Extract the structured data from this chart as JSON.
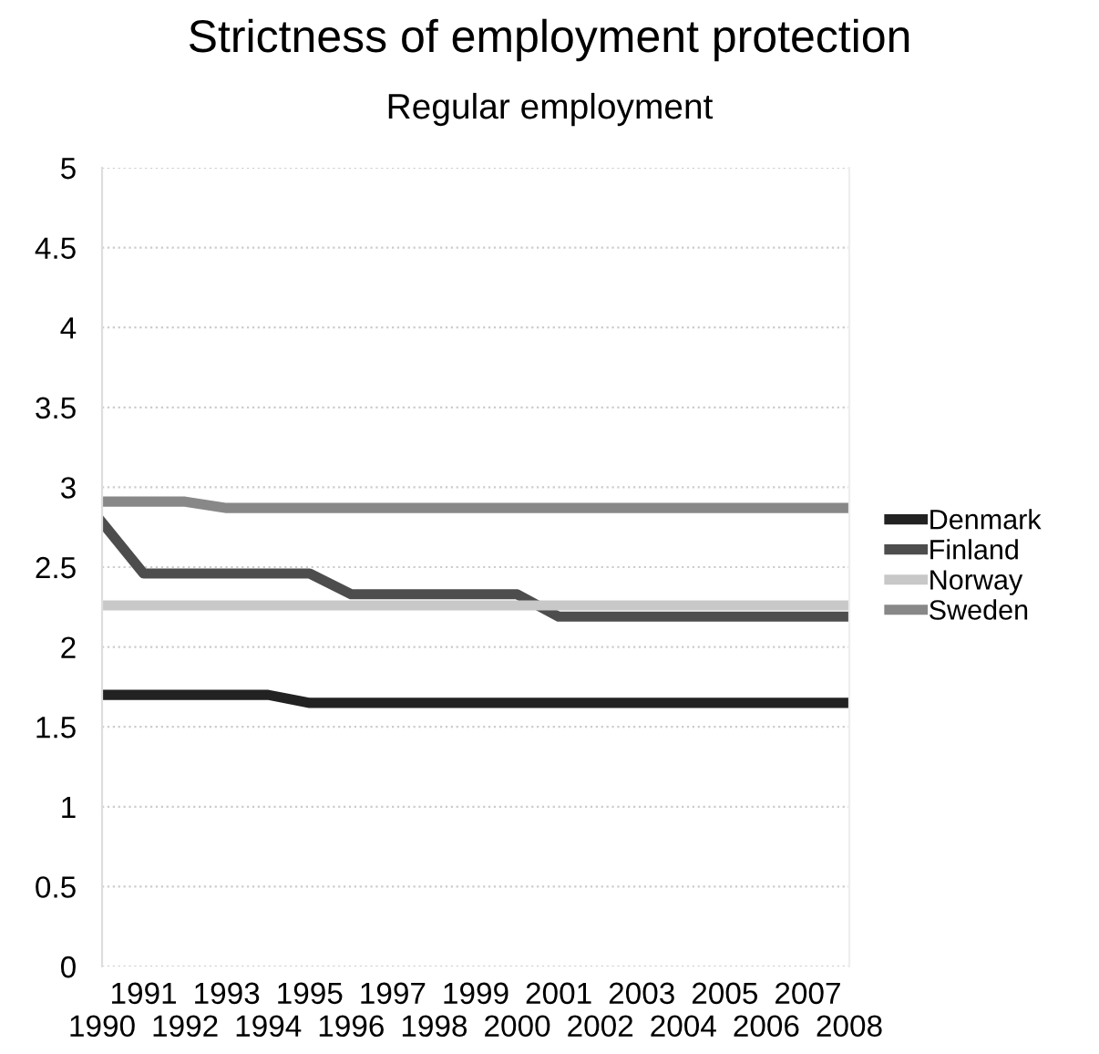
{
  "chart_data": {
    "type": "line",
    "title": "Strictness of employment protection",
    "subtitle": "Regular employment",
    "categories": [
      "1990",
      "1991",
      "1992",
      "1993",
      "1994",
      "1995",
      "1996",
      "1997",
      "1998",
      "1999",
      "2000",
      "2001",
      "2002",
      "2003",
      "2004",
      "2005",
      "2006",
      "2007",
      "2008"
    ],
    "series": [
      {
        "name": "Denmark",
        "color": "#222222",
        "values": [
          1.7,
          1.7,
          1.7,
          1.7,
          1.7,
          1.65,
          1.65,
          1.65,
          1.65,
          1.65,
          1.65,
          1.65,
          1.65,
          1.65,
          1.65,
          1.65,
          1.65,
          1.65,
          1.65
        ]
      },
      {
        "name": "Finland",
        "color": "#4d4d4d",
        "values": [
          2.78,
          2.46,
          2.46,
          2.46,
          2.46,
          2.46,
          2.33,
          2.33,
          2.33,
          2.33,
          2.33,
          2.19,
          2.19,
          2.19,
          2.19,
          2.19,
          2.19,
          2.19,
          2.19
        ]
      },
      {
        "name": "Norway",
        "color": "#c8c8c8",
        "values": [
          2.26,
          2.26,
          2.26,
          2.26,
          2.26,
          2.26,
          2.26,
          2.26,
          2.26,
          2.26,
          2.26,
          2.26,
          2.26,
          2.26,
          2.26,
          2.26,
          2.26,
          2.26,
          2.26
        ]
      },
      {
        "name": "Sweden",
        "color": "#888888",
        "values": [
          2.91,
          2.91,
          2.91,
          2.87,
          2.87,
          2.87,
          2.87,
          2.87,
          2.87,
          2.87,
          2.87,
          2.87,
          2.87,
          2.87,
          2.87,
          2.87,
          2.87,
          2.87,
          2.87
        ]
      }
    ],
    "ylim": [
      0,
      5
    ],
    "yticks": [
      0,
      0.5,
      1,
      1.5,
      2,
      2.5,
      3,
      3.5,
      4,
      4.5,
      5
    ],
    "grid": "y",
    "legend": "right",
    "marker": "none",
    "line_style": "solid"
  }
}
